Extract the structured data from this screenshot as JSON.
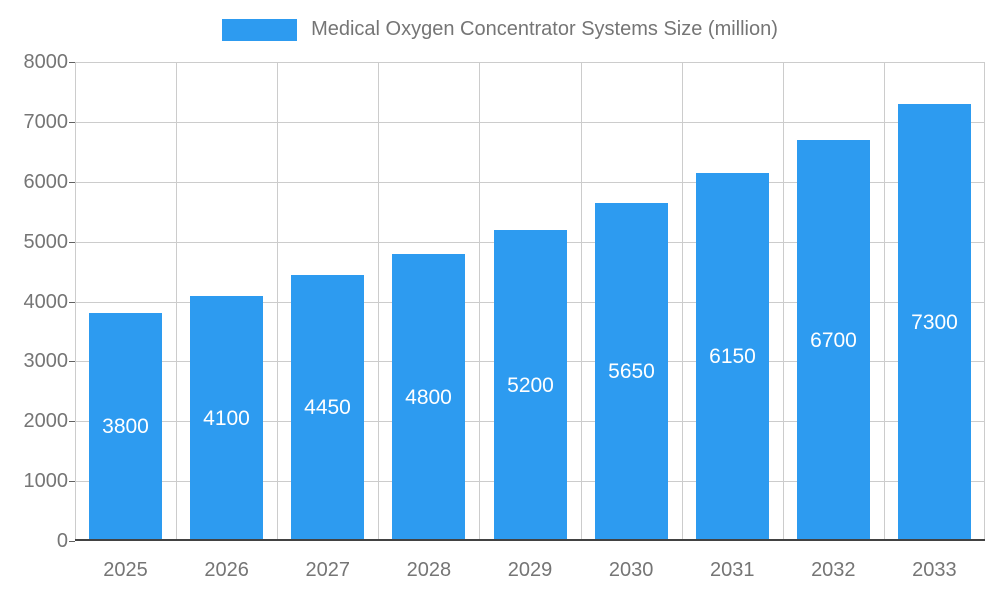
{
  "chart_data": {
    "type": "bar",
    "title": "Medical Oxygen Concentrator Systems Size (million)",
    "categories": [
      "2025",
      "2026",
      "2027",
      "2028",
      "2029",
      "2030",
      "2031",
      "2032",
      "2033"
    ],
    "values": [
      3800,
      4100,
      4450,
      4800,
      5200,
      5650,
      6150,
      6700,
      7300
    ],
    "xlabel": "",
    "ylabel": "",
    "ylim": [
      0,
      8000
    ],
    "yticks": [
      0,
      1000,
      2000,
      3000,
      4000,
      5000,
      6000,
      7000,
      8000
    ],
    "grid": true,
    "legend_position": "top",
    "bar_color": "#2D9BF0",
    "grid_color": "#CCCCCC",
    "axis_text_color": "#757575",
    "baseline_color": "#424242",
    "value_label_color": "#FFFFFF"
  }
}
